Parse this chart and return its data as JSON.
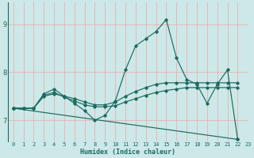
{
  "xlabel": "Humidex (Indice chaleur)",
  "xlim": [
    -0.5,
    23
  ],
  "ylim": [
    6.55,
    9.45
  ],
  "yticks": [
    7,
    8,
    9
  ],
  "xticks": [
    0,
    1,
    2,
    3,
    4,
    5,
    6,
    7,
    8,
    9,
    10,
    11,
    12,
    13,
    14,
    15,
    16,
    17,
    18,
    19,
    20,
    21,
    22,
    23
  ],
  "bg_color": "#cde8e8",
  "grid_color": "#e8b0b0",
  "line_color": "#1a6b60",
  "line1_x": [
    0,
    1,
    2,
    3,
    4,
    5,
    6,
    7,
    8,
    9,
    10,
    11,
    12,
    13,
    14,
    15,
    16,
    17,
    18,
    19,
    20,
    21,
    22
  ],
  "line1_y": [
    7.25,
    7.25,
    7.25,
    7.55,
    7.65,
    7.5,
    7.35,
    7.2,
    7.0,
    7.1,
    7.4,
    8.05,
    8.55,
    8.7,
    8.85,
    9.1,
    8.3,
    7.85,
    7.75,
    7.35,
    7.75,
    8.05,
    6.6
  ],
  "line2_x": [
    0,
    1,
    2,
    3,
    4,
    5,
    6,
    7,
    8,
    9,
    10,
    11,
    12,
    13,
    14,
    15,
    16,
    17,
    18,
    19,
    20,
    21,
    22
  ],
  "line2_y": [
    7.25,
    7.25,
    7.25,
    7.5,
    7.55,
    7.5,
    7.45,
    7.38,
    7.32,
    7.32,
    7.38,
    7.5,
    7.6,
    7.68,
    7.75,
    7.78,
    7.78,
    7.78,
    7.78,
    7.78,
    7.78,
    7.78,
    7.78
  ],
  "line3_x": [
    0,
    1,
    2,
    3,
    4,
    5,
    6,
    7,
    8,
    9,
    10,
    11,
    12,
    13,
    14,
    15,
    16,
    17,
    18,
    19,
    20,
    21,
    22
  ],
  "line3_y": [
    7.25,
    7.25,
    7.25,
    7.52,
    7.58,
    7.48,
    7.4,
    7.32,
    7.28,
    7.28,
    7.3,
    7.38,
    7.45,
    7.52,
    7.58,
    7.62,
    7.65,
    7.68,
    7.68,
    7.68,
    7.68,
    7.68,
    7.68
  ],
  "line4_x": [
    0,
    22
  ],
  "line4_y": [
    7.25,
    6.6
  ],
  "xlabel_fontsize": 6,
  "tick_fontsize": 5,
  "ytick_fontsize": 6
}
